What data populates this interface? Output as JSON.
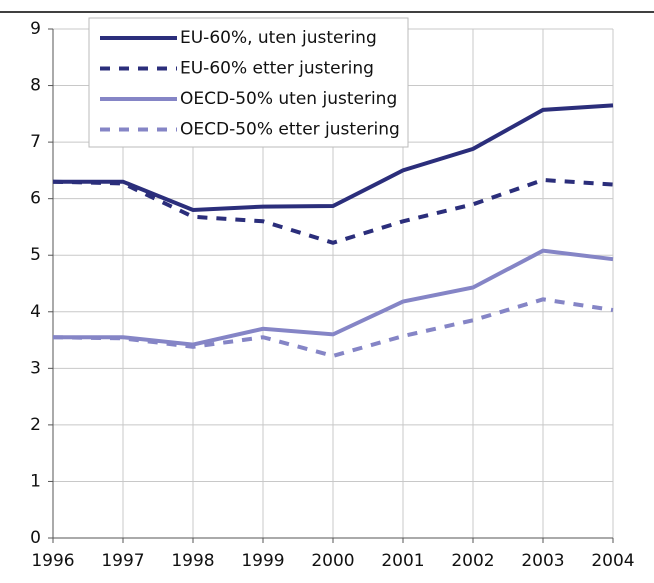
{
  "chart_data": {
    "type": "line",
    "x": [
      1996,
      1997,
      1998,
      1999,
      2000,
      2001,
      2002,
      2003,
      2004
    ],
    "xlim": [
      1996,
      2004
    ],
    "xticks": [
      1996,
      1997,
      1998,
      1999,
      2000,
      2001,
      2002,
      2003,
      2004
    ],
    "ylim": [
      0,
      9
    ],
    "yticks": [
      0,
      1,
      2,
      3,
      4,
      5,
      6,
      7,
      8,
      9
    ],
    "grid": true,
    "legend": "upper left",
    "series": [
      {
        "name": "EU-60%, uten justering",
        "color": "#2b2e7b",
        "style": "solid",
        "values": [
          6.3,
          6.3,
          5.8,
          5.86,
          5.87,
          6.5,
          6.88,
          7.57,
          7.65
        ]
      },
      {
        "name": "EU-60% etter justering",
        "color": "#2b2e7b",
        "style": "dashed",
        "values": [
          6.3,
          6.27,
          5.68,
          5.6,
          5.22,
          5.6,
          5.9,
          6.33,
          6.25
        ]
      },
      {
        "name": "OECD-50% uten justering",
        "color": "#8585c6",
        "style": "solid",
        "values": [
          3.55,
          3.55,
          3.42,
          3.7,
          3.6,
          4.18,
          4.43,
          5.08,
          4.93
        ]
      },
      {
        "name": "OECD-50% etter justering",
        "color": "#8585c6",
        "style": "dashed",
        "values": [
          3.55,
          3.53,
          3.38,
          3.55,
          3.22,
          3.57,
          3.85,
          4.22,
          4.03
        ]
      }
    ]
  }
}
